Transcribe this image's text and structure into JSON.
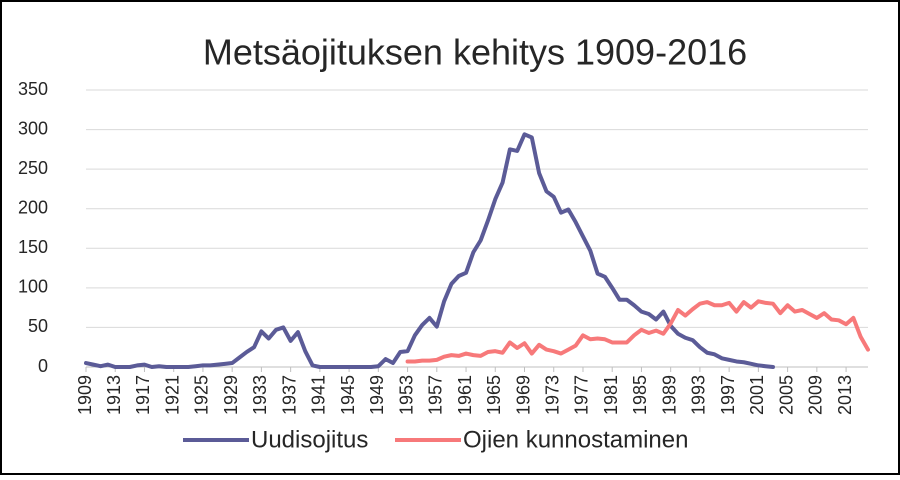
{
  "chart_data": {
    "type": "line",
    "title": "Metsäojituksen kehitys 1909-2016",
    "x": [
      1909,
      1910,
      1911,
      1912,
      1913,
      1914,
      1915,
      1916,
      1917,
      1918,
      1919,
      1920,
      1921,
      1922,
      1923,
      1924,
      1925,
      1926,
      1927,
      1928,
      1929,
      1930,
      1931,
      1932,
      1933,
      1934,
      1935,
      1936,
      1937,
      1938,
      1939,
      1940,
      1941,
      1942,
      1943,
      1944,
      1945,
      1946,
      1947,
      1948,
      1949,
      1950,
      1951,
      1952,
      1953,
      1954,
      1955,
      1956,
      1957,
      1958,
      1959,
      1960,
      1961,
      1962,
      1963,
      1964,
      1965,
      1966,
      1967,
      1968,
      1969,
      1970,
      1971,
      1972,
      1973,
      1974,
      1975,
      1976,
      1977,
      1978,
      1979,
      1980,
      1981,
      1982,
      1983,
      1984,
      1985,
      1986,
      1987,
      1988,
      1989,
      1990,
      1991,
      1992,
      1993,
      1994,
      1995,
      1996,
      1997,
      1998,
      1999,
      2000,
      2001,
      2002,
      2003,
      2004,
      2005,
      2006,
      2007,
      2008,
      2009,
      2010,
      2011,
      2012,
      2013,
      2014,
      2015,
      2016
    ],
    "xlim": [
      1909,
      2016
    ],
    "xticks": [
      1909,
      1913,
      1917,
      1921,
      1925,
      1929,
      1933,
      1937,
      1941,
      1945,
      1949,
      1953,
      1957,
      1961,
      1965,
      1969,
      1973,
      1977,
      1981,
      1985,
      1989,
      1993,
      1997,
      2001,
      2005,
      2009,
      2013
    ],
    "ylim": [
      0,
      350
    ],
    "yticks": [
      0,
      50,
      100,
      150,
      200,
      250,
      300,
      350
    ],
    "grid": true,
    "series": [
      {
        "name": "Uudisojitus",
        "color": "#5b5b97",
        "values": [
          5,
          3,
          1,
          3,
          0,
          0,
          0,
          2,
          3,
          0,
          1,
          0,
          0,
          0,
          0,
          1,
          2,
          2,
          3,
          4,
          5,
          12,
          19,
          25,
          45,
          36,
          47,
          50,
          33,
          44,
          20,
          2,
          0,
          0,
          0,
          0,
          0,
          0,
          0,
          0,
          1,
          10,
          5,
          19,
          20,
          40,
          53,
          62,
          51,
          83,
          105,
          115,
          119,
          145,
          160,
          185,
          212,
          233,
          275,
          273,
          294,
          290,
          245,
          222,
          215,
          195,
          199,
          183,
          165,
          147,
          118,
          114,
          100,
          85,
          85,
          78,
          70,
          67,
          60,
          70,
          52,
          42,
          37,
          34,
          25,
          18,
          16,
          11,
          9,
          7,
          6,
          4,
          2,
          1,
          0,
          null,
          null,
          null,
          null,
          null,
          null,
          null,
          null,
          null,
          null,
          null,
          null,
          null
        ]
      },
      {
        "name": "Ojien kunnostaminen",
        "color": "#f7797a",
        "values": [
          null,
          null,
          null,
          null,
          null,
          null,
          null,
          null,
          null,
          null,
          null,
          null,
          null,
          null,
          null,
          null,
          null,
          null,
          null,
          null,
          null,
          null,
          null,
          null,
          null,
          null,
          null,
          null,
          null,
          null,
          null,
          null,
          null,
          null,
          null,
          null,
          null,
          null,
          null,
          null,
          null,
          null,
          null,
          null,
          7,
          7,
          8,
          8,
          9,
          13,
          15,
          14,
          17,
          15,
          14,
          19,
          20,
          18,
          31,
          24,
          30,
          17,
          28,
          22,
          20,
          17,
          22,
          27,
          40,
          35,
          36,
          35,
          31,
          31,
          31,
          40,
          47,
          43,
          46,
          42,
          55,
          72,
          65,
          73,
          80,
          82,
          78,
          78,
          81,
          70,
          82,
          75,
          83,
          81,
          80,
          68,
          78,
          70,
          72,
          67,
          62,
          68,
          60,
          59,
          54,
          62,
          38,
          22
        ]
      }
    ]
  }
}
